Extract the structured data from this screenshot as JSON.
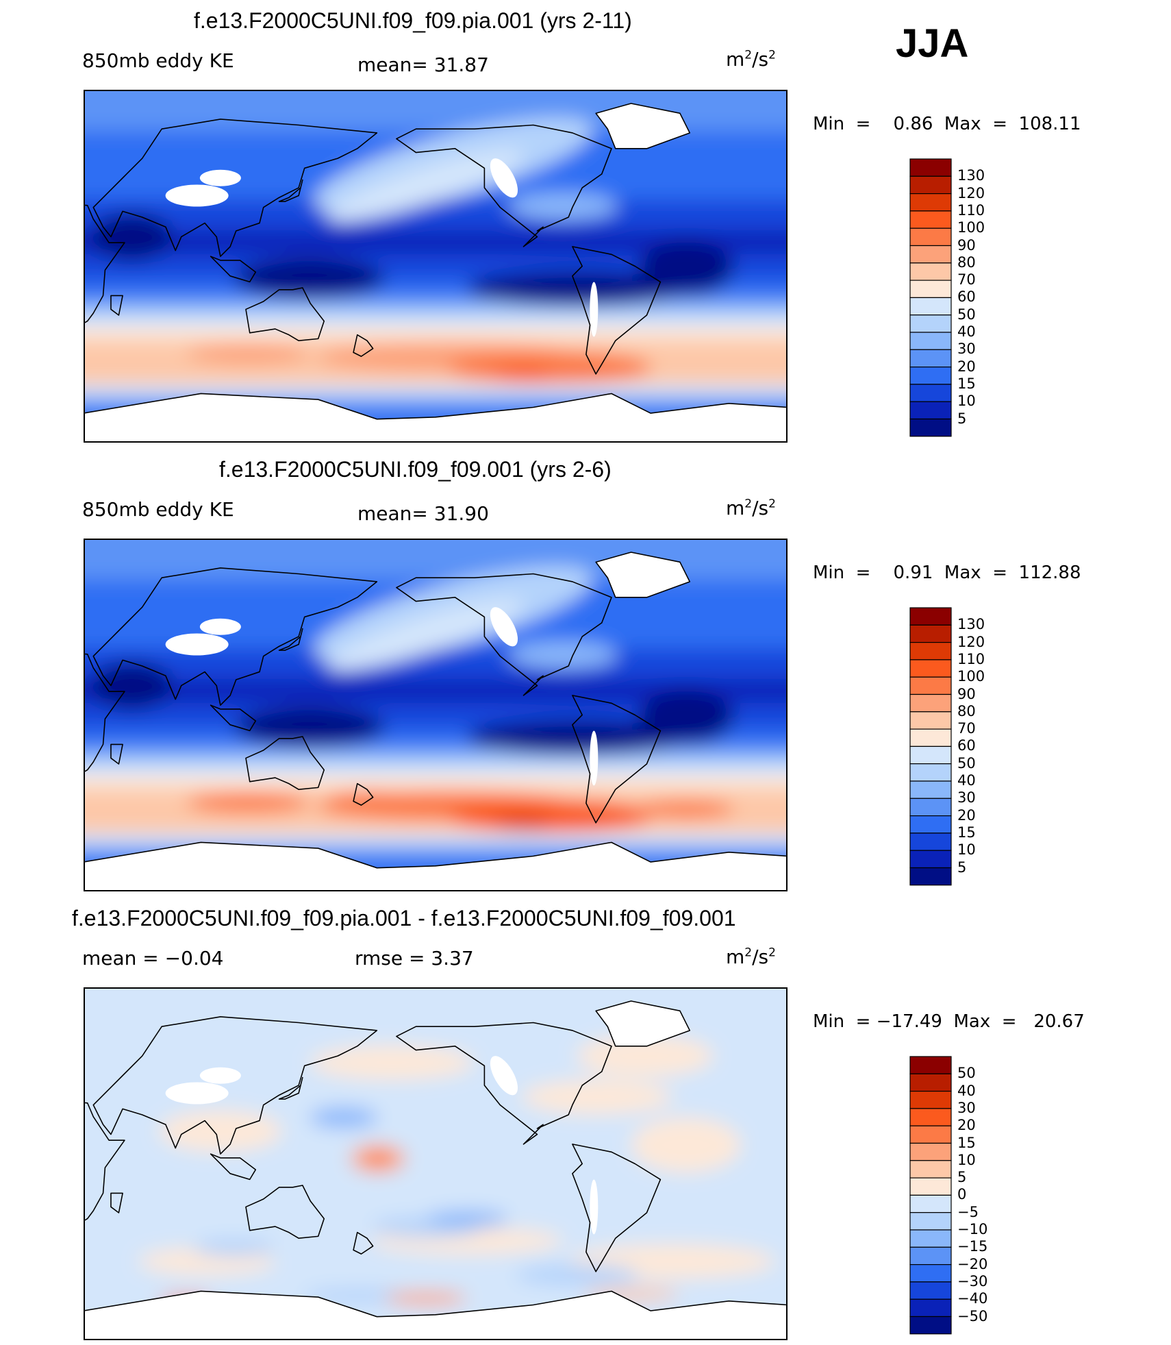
{
  "season": "JJA",
  "panels": [
    {
      "title": "f.e13.F2000C5UNI.f09_f09.pia.001 (yrs 2-11)",
      "left_label": "850mb eddy KE",
      "center_label": "mean=   31.87",
      "unit_base": "m",
      "unit_exp1": "2",
      "unit_mid": "/s",
      "unit_exp2": "2",
      "stats": "Min  =    0.86  Max  =  108.11",
      "colorbar": [
        "130",
        "120",
        "110",
        "100",
        "90",
        "80",
        "70",
        "60",
        "50",
        "40",
        "30",
        "20",
        "15",
        "10",
        "5"
      ],
      "colors": [
        "#8b0000",
        "#b81e00",
        "#de3a05",
        "#fb5a1e",
        "#fc7a46",
        "#fca27a",
        "#fdc8a8",
        "#fde8d8",
        "#d4e6fb",
        "#b4d3fb",
        "#8ab7fa",
        "#5c93f6",
        "#2f6ef3",
        "#1646db",
        "#0a22b8",
        "#000e85"
      ]
    },
    {
      "title": "f.e13.F2000C5UNI.f09_f09.001 (yrs 2-6)",
      "left_label": "850mb eddy KE",
      "center_label": "mean=   31.90",
      "unit_base": "m",
      "unit_exp1": "2",
      "unit_mid": "/s",
      "unit_exp2": "2",
      "stats": "Min  =    0.91  Max  =  112.88",
      "colorbar": [
        "130",
        "120",
        "110",
        "100",
        "90",
        "80",
        "70",
        "60",
        "50",
        "40",
        "30",
        "20",
        "15",
        "10",
        "5"
      ],
      "colors": [
        "#8b0000",
        "#b81e00",
        "#de3a05",
        "#fb5a1e",
        "#fc7a46",
        "#fca27a",
        "#fdc8a8",
        "#fde8d8",
        "#d4e6fb",
        "#b4d3fb",
        "#8ab7fa",
        "#5c93f6",
        "#2f6ef3",
        "#1646db",
        "#0a22b8",
        "#000e85"
      ]
    },
    {
      "title": "f.e13.F2000C5UNI.f09_f09.pia.001 - f.e13.F2000C5UNI.f09_f09.001",
      "left_label": "mean  =   −0.04",
      "center_label": "rmse  =     3.37",
      "unit_base": "m",
      "unit_exp1": "2",
      "unit_mid": "/s",
      "unit_exp2": "2",
      "stats": "Min  = −17.49  Max  =   20.67",
      "colorbar": [
        "50",
        "40",
        "30",
        "20",
        "15",
        "10",
        "5",
        "0",
        "−5",
        "−10",
        "−15",
        "−20",
        "−30",
        "−40",
        "−50"
      ],
      "colors": [
        "#8b0000",
        "#b81e00",
        "#de3a05",
        "#fb5a1e",
        "#fc7a46",
        "#fca27a",
        "#fdc8a8",
        "#fde8d8",
        "#d4e6fb",
        "#b4d3fb",
        "#8ab7fa",
        "#5c93f6",
        "#2f6ef3",
        "#1646db",
        "#0a22b8",
        "#000e85"
      ]
    }
  ],
  "chart_data": [
    {
      "type": "heatmap",
      "title": "f.e13.F2000C5UNI.f09_f09.pia.001 (yrs 2-11)",
      "variable": "850mb eddy KE",
      "units": "m2/s2",
      "mean": 31.87,
      "min": 0.86,
      "max": 108.11,
      "levels": [
        5,
        10,
        15,
        20,
        30,
        40,
        50,
        60,
        70,
        80,
        90,
        100,
        110,
        120,
        130
      ]
    },
    {
      "type": "heatmap",
      "title": "f.e13.F2000C5UNI.f09_f09.001 (yrs 2-6)",
      "variable": "850mb eddy KE",
      "units": "m2/s2",
      "mean": 31.9,
      "min": 0.91,
      "max": 112.88,
      "levels": [
        5,
        10,
        15,
        20,
        30,
        40,
        50,
        60,
        70,
        80,
        90,
        100,
        110,
        120,
        130
      ]
    },
    {
      "type": "heatmap",
      "title": "f.e13.F2000C5UNI.f09_f09.pia.001 - f.e13.F2000C5UNI.f09_f09.001",
      "units": "m2/s2",
      "mean": -0.04,
      "rmse": 3.37,
      "min": -17.49,
      "max": 20.67,
      "levels": [
        -50,
        -40,
        -30,
        -20,
        -15,
        -10,
        -5,
        0,
        5,
        10,
        15,
        20,
        30,
        40,
        50
      ]
    }
  ]
}
